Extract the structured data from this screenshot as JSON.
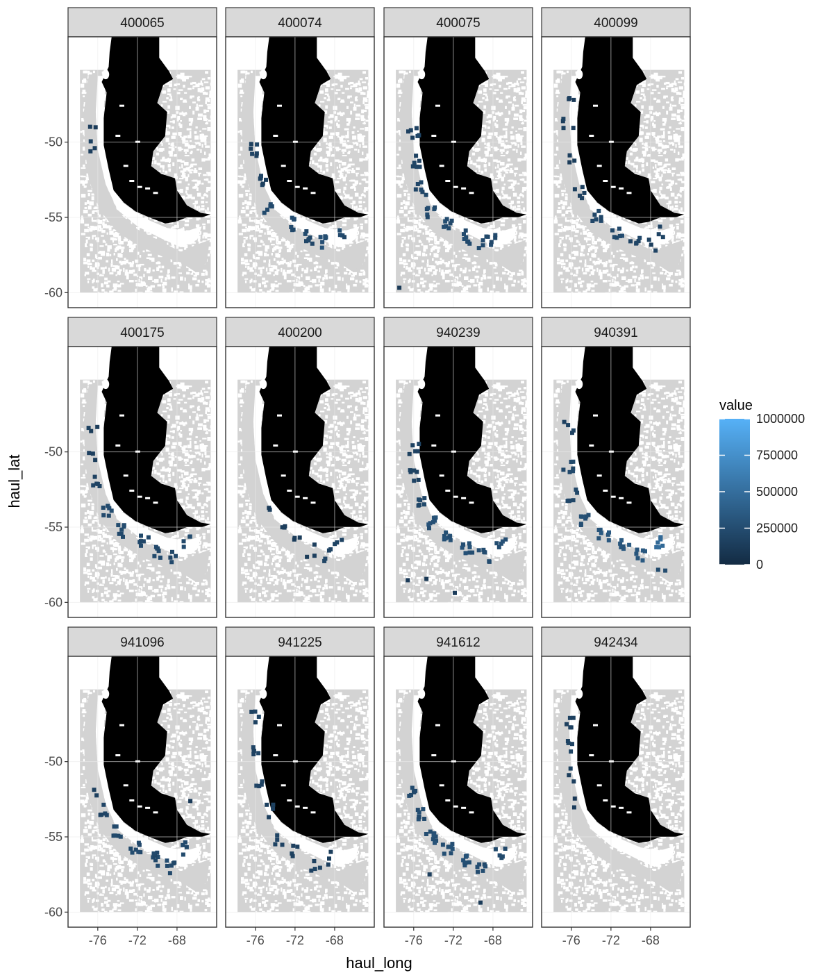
{
  "chart_data": {
    "type": "heatmap",
    "facet_layout": {
      "rows": 3,
      "cols": 4
    },
    "xlabel": "haul_long",
    "ylabel": "haul_lat",
    "xlim": [
      -79,
      -64
    ],
    "ylim": [
      -61,
      -43
    ],
    "x_ticks": [
      -76,
      -72,
      -68
    ],
    "x_tick_labels": [
      "-76",
      "-72",
      "-68"
    ],
    "y_ticks": [
      -50,
      -55,
      -60
    ],
    "y_tick_labels": [
      "-50",
      "-55",
      "-60"
    ],
    "grid": true,
    "legend": {
      "title": "value",
      "placement": "right",
      "min": 0,
      "max": 1000000,
      "breaks": [
        0,
        250000,
        500000,
        750000,
        1000000
      ],
      "break_labels": [
        "0",
        "250000",
        "500000",
        "750000",
        "1000000"
      ],
      "low_color": "#132B43",
      "high_color": "#56B1F7"
    },
    "colors": {
      "land": "#000000",
      "sea_cells": "#d3d3d3",
      "panel_bg": "#ffffff",
      "strip_bg": "#d9d9d9"
    },
    "facets": [
      {
        "label": "400065",
        "hotspots": [
          [
            -76.3,
            -49.2,
            0.1,
            2
          ],
          [
            -76.4,
            -50.3,
            0.12,
            3
          ]
        ]
      },
      {
        "label": "400074",
        "hotspots": [
          [
            -76.0,
            -50.5,
            0.15,
            6
          ],
          [
            -75.4,
            -52.6,
            0.15,
            6
          ],
          [
            -74.8,
            -54.4,
            0.2,
            5
          ],
          [
            -72.5,
            -55.4,
            0.2,
            6
          ],
          [
            -70.5,
            -56.3,
            0.2,
            7
          ],
          [
            -69.0,
            -56.7,
            0.25,
            6
          ],
          [
            -67.4,
            -56.0,
            0.2,
            4
          ]
        ]
      },
      {
        "label": "400075",
        "hotspots": [
          [
            -76.0,
            -49.4,
            0.15,
            6
          ],
          [
            -75.7,
            -51.3,
            0.15,
            6
          ],
          [
            -75.3,
            -53.1,
            0.18,
            6
          ],
          [
            -74.4,
            -54.6,
            0.2,
            6
          ],
          [
            -72.6,
            -55.5,
            0.22,
            7
          ],
          [
            -70.7,
            -56.3,
            0.22,
            7
          ],
          [
            -69.0,
            -56.7,
            0.2,
            5
          ],
          [
            -67.7,
            -56.5,
            0.2,
            4
          ],
          [
            -77.5,
            -59.7,
            0.1,
            1
          ]
        ]
      },
      {
        "label": "400099",
        "hotspots": [
          [
            -76.2,
            -47.1,
            0.12,
            3
          ],
          [
            -76.3,
            -48.9,
            0.12,
            4
          ],
          [
            -75.9,
            -51.1,
            0.12,
            3
          ],
          [
            -75.2,
            -53.3,
            0.15,
            5
          ],
          [
            -73.5,
            -55.0,
            0.2,
            6
          ],
          [
            -71.4,
            -55.9,
            0.2,
            6
          ],
          [
            -69.6,
            -56.3,
            0.18,
            5
          ],
          [
            -68.0,
            -56.8,
            0.15,
            3
          ],
          [
            -67.0,
            -56.0,
            0.15,
            3
          ]
        ]
      },
      {
        "label": "400175",
        "hotspots": [
          [
            -76.5,
            -48.7,
            0.12,
            3
          ],
          [
            -76.6,
            -50.3,
            0.12,
            3
          ],
          [
            -76.1,
            -52.1,
            0.15,
            5
          ],
          [
            -75.1,
            -53.8,
            0.2,
            6
          ],
          [
            -73.4,
            -55.2,
            0.2,
            7
          ],
          [
            -71.3,
            -55.8,
            0.2,
            6
          ],
          [
            -69.8,
            -56.7,
            0.2,
            6
          ],
          [
            -68.5,
            -57.0,
            0.18,
            4
          ],
          [
            -67.2,
            -56.0,
            0.2,
            4
          ]
        ]
      },
      {
        "label": "400200",
        "hotspots": [
          [
            -74.3,
            -53.7,
            0.1,
            2
          ],
          [
            -73.5,
            -55.3,
            0.12,
            3
          ],
          [
            -72.0,
            -56.0,
            0.12,
            3
          ],
          [
            -70.5,
            -56.6,
            0.12,
            3
          ],
          [
            -68.7,
            -56.9,
            0.15,
            4
          ],
          [
            -67.5,
            -55.9,
            0.15,
            3
          ]
        ]
      },
      {
        "label": "940239",
        "hotspots": [
          [
            -76.0,
            -49.7,
            0.15,
            5
          ],
          [
            -76.0,
            -51.6,
            0.15,
            6
          ],
          [
            -75.4,
            -53.4,
            0.2,
            6
          ],
          [
            -74.3,
            -54.8,
            0.25,
            7
          ],
          [
            -72.6,
            -55.6,
            0.25,
            7
          ],
          [
            -70.6,
            -56.5,
            0.25,
            8
          ],
          [
            -68.9,
            -56.9,
            0.22,
            6
          ],
          [
            -67.1,
            -55.9,
            0.25,
            5
          ],
          [
            -77.0,
            -58.6,
            0.1,
            1
          ],
          [
            -74.5,
            -58.2,
            0.1,
            1
          ],
          [
            -71.5,
            -59.5,
            0.1,
            1
          ]
        ]
      },
      {
        "label": "940391",
        "hotspots": [
          [
            -76.2,
            -48.4,
            0.15,
            4
          ],
          [
            -76.3,
            -50.9,
            0.18,
            6
          ],
          [
            -75.9,
            -52.9,
            0.2,
            6
          ],
          [
            -74.5,
            -54.6,
            0.25,
            7
          ],
          [
            -72.7,
            -55.6,
            0.3,
            7
          ],
          [
            -70.7,
            -56.2,
            0.3,
            7
          ],
          [
            -68.9,
            -56.8,
            0.3,
            6
          ],
          [
            -67.0,
            -55.9,
            0.45,
            7
          ],
          [
            -66.7,
            -57.6,
            0.2,
            2
          ]
        ]
      },
      {
        "label": "941096",
        "hotspots": [
          [
            -76.0,
            -51.9,
            0.12,
            2
          ],
          [
            -75.2,
            -53.2,
            0.15,
            5
          ],
          [
            -74.2,
            -54.7,
            0.18,
            6
          ],
          [
            -72.2,
            -55.7,
            0.2,
            7
          ],
          [
            -70.4,
            -56.5,
            0.2,
            7
          ],
          [
            -68.5,
            -57.0,
            0.2,
            6
          ],
          [
            -67.0,
            -55.8,
            0.2,
            4
          ],
          [
            -67.0,
            -52.7,
            0.1,
            1
          ]
        ]
      },
      {
        "label": "941225",
        "hotspots": [
          [
            -76.0,
            -47.1,
            0.15,
            4
          ],
          [
            -76.2,
            -49.1,
            0.15,
            5
          ],
          [
            -75.6,
            -51.2,
            0.15,
            4
          ],
          [
            -74.7,
            -53.3,
            0.15,
            4
          ],
          [
            -73.6,
            -55.2,
            0.15,
            4
          ],
          [
            -72.0,
            -56.0,
            0.15,
            4
          ],
          [
            -69.9,
            -56.9,
            0.15,
            4
          ],
          [
            -68.1,
            -56.4,
            0.12,
            3
          ]
        ]
      },
      {
        "label": "941612",
        "hotspots": [
          [
            -76.0,
            -52.0,
            0.2,
            6
          ],
          [
            -75.4,
            -53.6,
            0.22,
            7
          ],
          [
            -74.2,
            -55.0,
            0.25,
            8
          ],
          [
            -72.6,
            -55.8,
            0.25,
            8
          ],
          [
            -70.8,
            -56.6,
            0.25,
            8
          ],
          [
            -69.1,
            -57.1,
            0.22,
            6
          ],
          [
            -67.3,
            -56.0,
            0.2,
            5
          ],
          [
            -74.8,
            -57.2,
            0.1,
            1
          ],
          [
            -69.5,
            -59.8,
            0.1,
            1
          ]
        ]
      },
      {
        "label": "942434",
        "hotspots": [
          [
            -76.2,
            -47.3,
            0.15,
            5
          ],
          [
            -76.3,
            -49.0,
            0.15,
            4
          ],
          [
            -75.9,
            -50.9,
            0.12,
            3
          ],
          [
            -75.2,
            -52.7,
            0.1,
            2
          ]
        ]
      }
    ]
  }
}
